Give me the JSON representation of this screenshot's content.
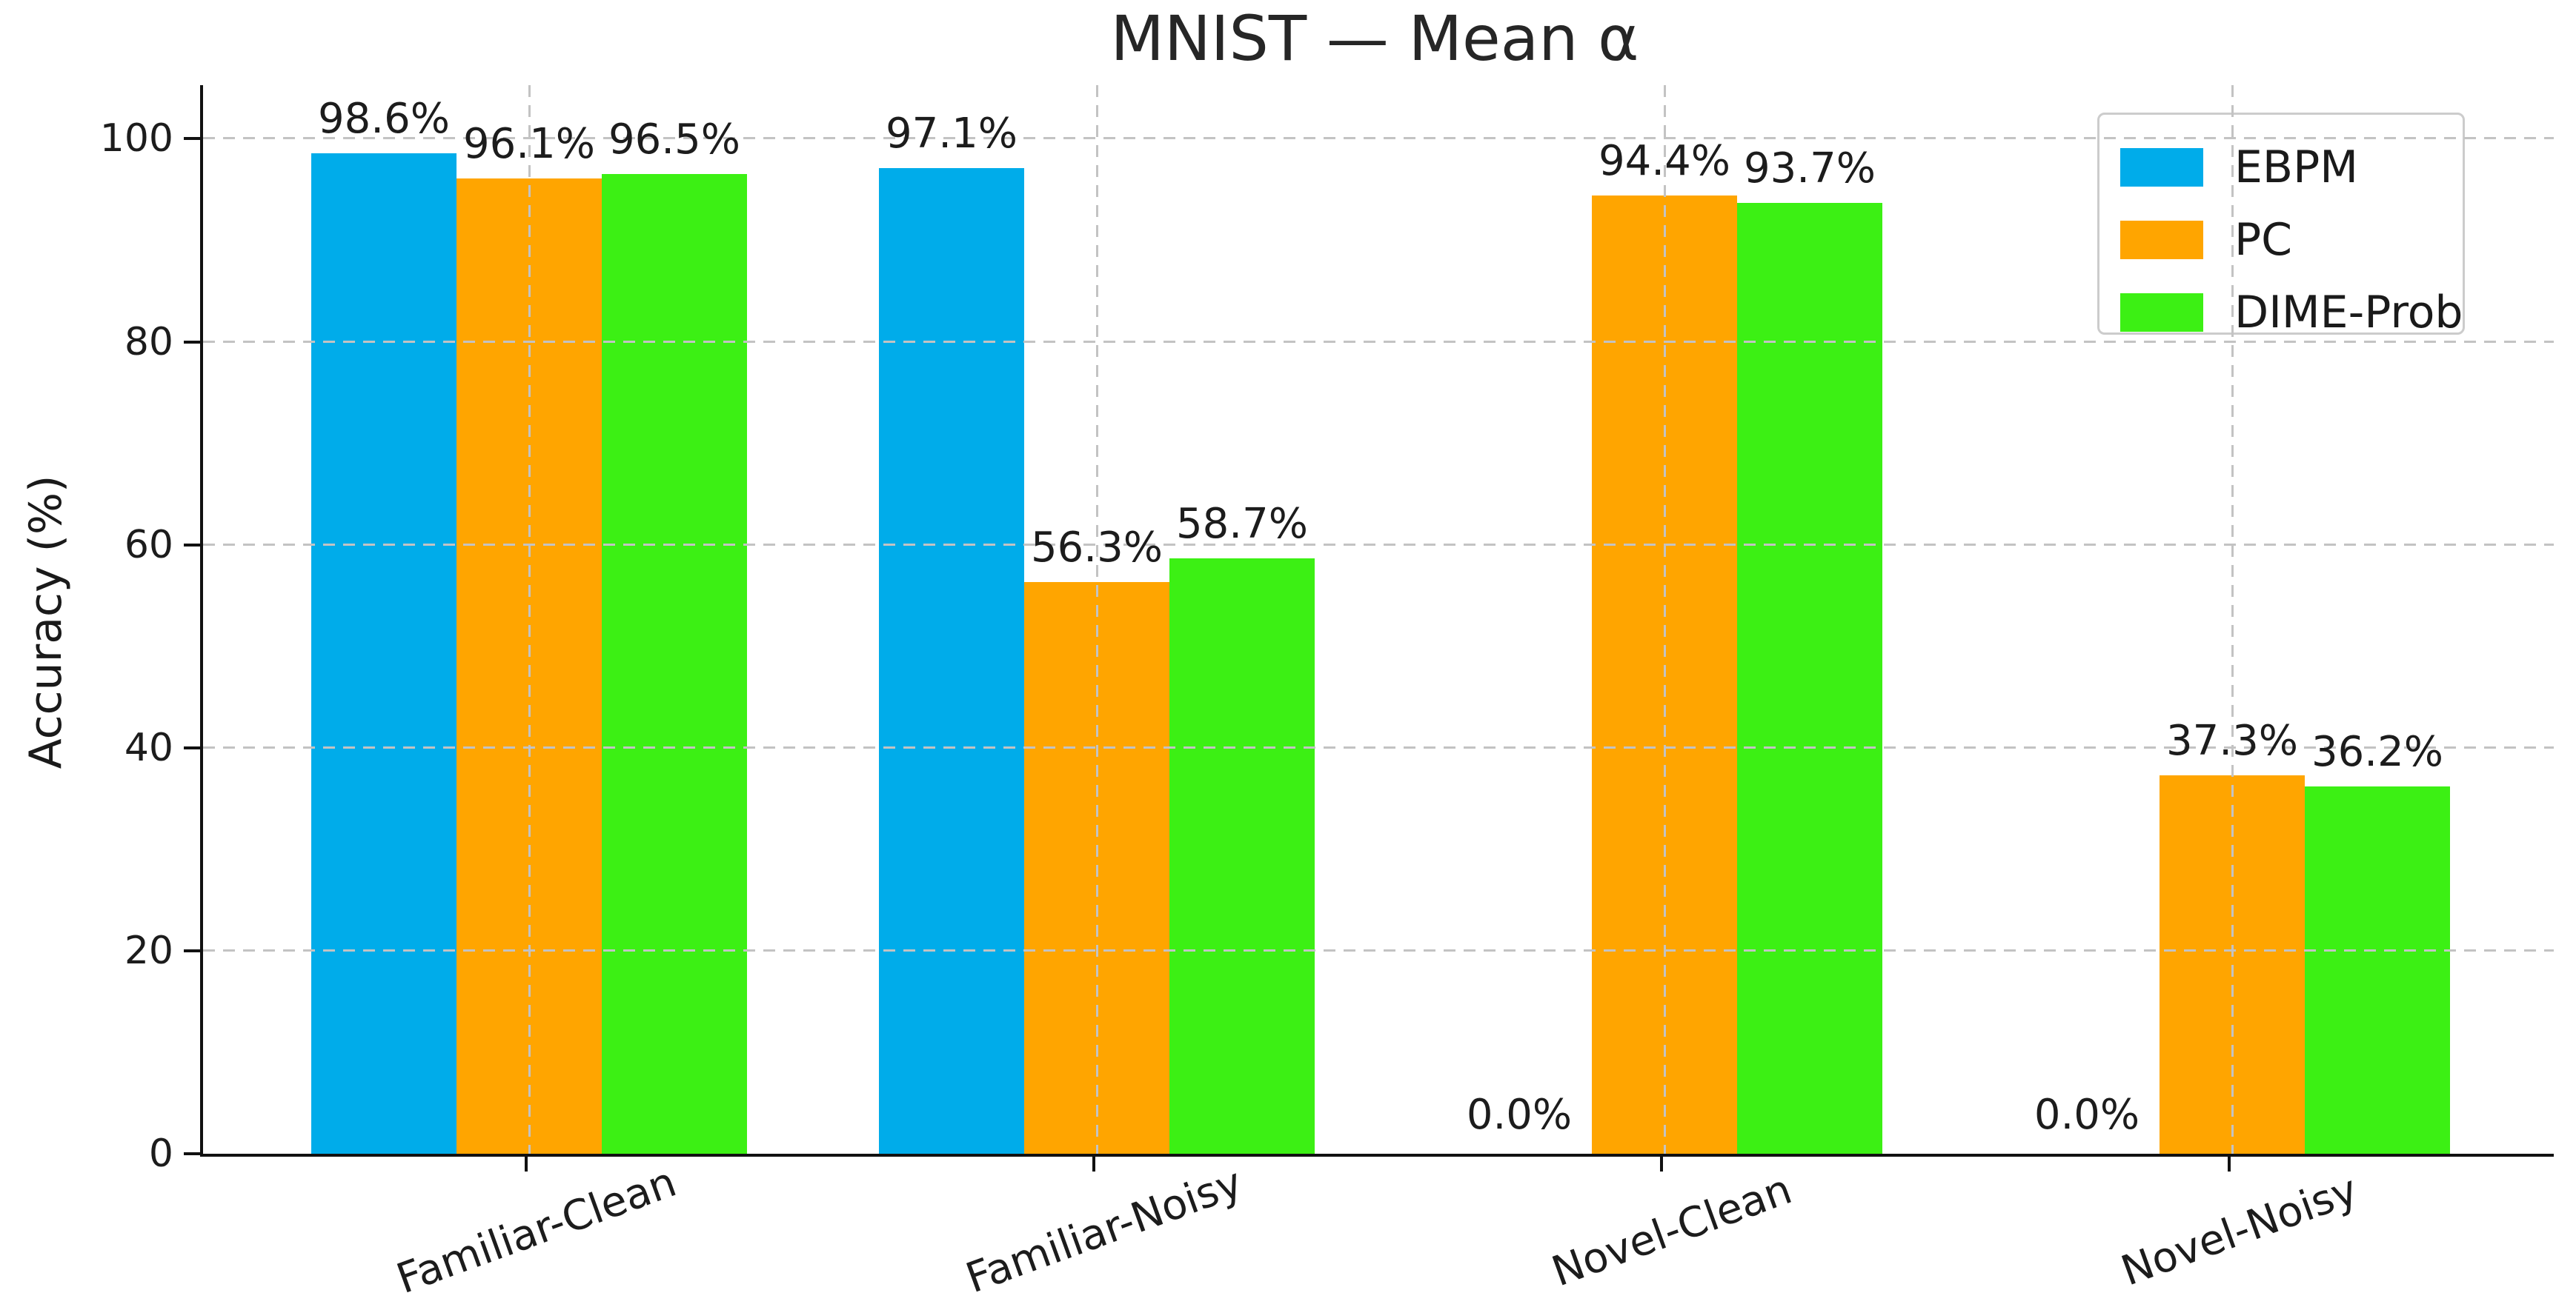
{
  "chart_data": {
    "type": "bar",
    "title": "MNIST — Mean α",
    "ylabel": "Accuracy (%)",
    "xlabel": "",
    "categories": [
      "Familiar-Clean",
      "Familiar-Noisy",
      "Novel-Clean",
      "Novel-Noisy"
    ],
    "series": [
      {
        "name": "EBPM",
        "color": "#00ACEA",
        "values": [
          98.6,
          97.1,
          0.0,
          0.0
        ],
        "labels": [
          "98.6%",
          "97.1%",
          "0.0%",
          "0.0%"
        ]
      },
      {
        "name": "PC",
        "color": "#FFA500",
        "values": [
          96.1,
          56.3,
          94.4,
          37.3
        ],
        "labels": [
          "96.1%",
          "56.3%",
          "94.4%",
          "37.3%"
        ]
      },
      {
        "name": "DIME-Prob",
        "color": "#3CF014",
        "values": [
          96.5,
          58.7,
          93.7,
          36.2
        ],
        "labels": [
          "96.5%",
          "58.7%",
          "93.7%",
          "36.2%"
        ]
      }
    ],
    "yticks": [
      0,
      20,
      40,
      60,
      80,
      100
    ],
    "ylim": [
      0,
      105.3
    ],
    "grid": "dashed, drawn above bars",
    "legend_position": "upper right",
    "axis_color": "#111111",
    "grid_color": "#c3c3c3",
    "text_color": "#1c1c1c"
  }
}
